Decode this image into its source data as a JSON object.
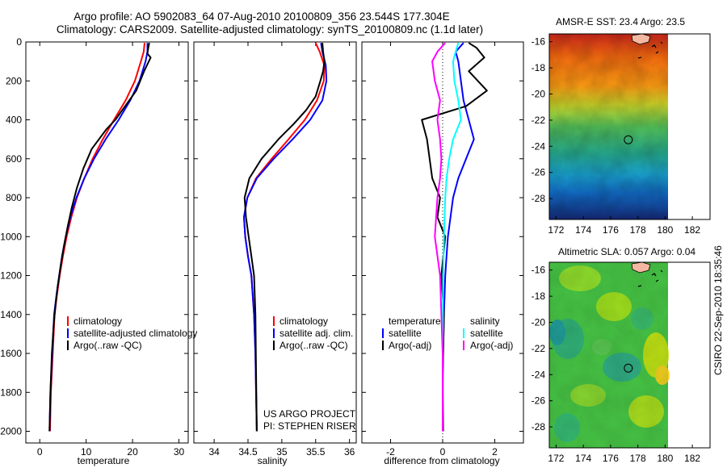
{
  "title": {
    "line1": "Argo profile: AO 5902083_64 07-Aug-2010 20100809_356 23.544S 177.304E",
    "line2": "Climatology: CARS2009. Satellite-adjusted climatology: synTS_20100809.nc (1.1d later)"
  },
  "side_label": "CSIRO  22-Sep-2010 18:35:46",
  "project_label": {
    "line1": "US ARGO PROJECT",
    "line2": "PI: STEPHEN RISER"
  },
  "colors": {
    "red": "#ff0000",
    "blue": "#0000ff",
    "black": "#000000",
    "cyan": "#00ffff",
    "magenta": "#ff00ff"
  },
  "chart_data": [
    {
      "type": "line",
      "xlabel": "temperature",
      "ylabel": "",
      "xlim": [
        -3,
        32
      ],
      "ylim": [
        2060,
        0
      ],
      "xticks": [
        0,
        10,
        20,
        30
      ],
      "yticks": [
        0,
        200,
        400,
        600,
        800,
        1000,
        1200,
        1400,
        1600,
        1800,
        2000
      ],
      "legend": {
        "position": "bottom-right",
        "entries": [
          "climatology",
          "satellite-adjusted climatology",
          "Argo(..raw -QC)"
        ]
      },
      "series": [
        {
          "name": "climatology",
          "color": "red",
          "x": [
            22.6,
            22.4,
            21.8,
            20.5,
            18.5,
            16.0,
            13.6,
            11.4,
            9.6,
            8.0,
            6.8,
            5.8,
            5.0,
            4.3,
            3.7,
            3.2,
            2.8,
            2.4,
            2.2
          ],
          "y": [
            5,
            50,
            100,
            200,
            300,
            400,
            500,
            600,
            700,
            800,
            900,
            1000,
            1100,
            1200,
            1300,
            1400,
            1600,
            1800,
            2000
          ]
        },
        {
          "name": "satellite-adjusted climatology",
          "color": "blue",
          "x": [
            23.2,
            23.2,
            22.8,
            21.5,
            19.5,
            17.0,
            14.2,
            11.7,
            9.6,
            7.9,
            6.6,
            5.6,
            4.8,
            4.2,
            3.6,
            3.1,
            2.7,
            2.3,
            2.1
          ],
          "y": [
            5,
            50,
            100,
            200,
            300,
            400,
            500,
            600,
            700,
            800,
            900,
            1000,
            1100,
            1200,
            1300,
            1400,
            1600,
            1800,
            2000
          ]
        },
        {
          "name": "Argo(..raw -QC)",
          "color": "black",
          "x": [
            23.6,
            23.4,
            23.2,
            23.9,
            22.5,
            20.8,
            16.3,
            14.3,
            11.2,
            9.4,
            8.0,
            6.9,
            6.0,
            5.2,
            4.5,
            3.9,
            3.4,
            3.0,
            2.6,
            2.3,
            2.1
          ],
          "y": [
            5,
            30,
            60,
            80,
            150,
            250,
            400,
            450,
            550,
            650,
            750,
            850,
            950,
            1050,
            1150,
            1250,
            1350,
            1450,
            1600,
            1800,
            2000
          ]
        }
      ]
    },
    {
      "type": "line",
      "xlabel": "salinity",
      "ylabel": "",
      "xlim": [
        33.7,
        36.1
      ],
      "ylim": [
        2060,
        0
      ],
      "xticks": [
        34,
        34.5,
        35,
        35.5,
        36
      ],
      "xticklabels": [
        "34",
        "34.5",
        "35",
        "35.5",
        "36"
      ],
      "legend": {
        "position": "bottom-right",
        "entries": [
          "climatology",
          "satellite adj. clim.",
          "Argo(..raw -QC)"
        ]
      },
      "series": [
        {
          "name": "climatology",
          "color": "red",
          "x": [
            35.5,
            35.56,
            35.63,
            35.62,
            35.52,
            35.34,
            35.1,
            34.85,
            34.62,
            34.49,
            34.44,
            34.46,
            34.5,
            34.55,
            34.59,
            34.61,
            34.62,
            34.63
          ],
          "y": [
            5,
            50,
            120,
            200,
            300,
            400,
            500,
            600,
            700,
            800,
            900,
            1000,
            1100,
            1200,
            1400,
            1600,
            1800,
            2000
          ]
        },
        {
          "name": "satellite adj. clim.",
          "color": "blue",
          "x": [
            35.58,
            35.6,
            35.65,
            35.66,
            35.6,
            35.42,
            35.16,
            34.88,
            34.63,
            34.49,
            34.44,
            34.46,
            34.5,
            34.55,
            34.59,
            34.61,
            34.62,
            34.63
          ],
          "y": [
            5,
            50,
            120,
            200,
            300,
            400,
            500,
            600,
            700,
            800,
            900,
            1000,
            1100,
            1200,
            1400,
            1600,
            1800,
            2000
          ]
        },
        {
          "name": "Argo(..raw -QC)",
          "color": "black",
          "x": [
            35.6,
            35.61,
            35.63,
            35.61,
            35.57,
            35.5,
            35.36,
            35.18,
            34.95,
            34.7,
            34.52,
            34.45,
            34.47,
            34.51,
            34.55,
            34.59,
            34.61,
            34.62,
            34.63
          ],
          "y": [
            5,
            50,
            100,
            150,
            200,
            280,
            350,
            420,
            500,
            600,
            700,
            800,
            900,
            1000,
            1100,
            1200,
            1400,
            1700,
            2000
          ]
        }
      ]
    },
    {
      "type": "line",
      "xlabel": "difference from climatology",
      "ylabel": "",
      "xlim": [
        -3.1,
        3.1
      ],
      "ylim": [
        2060,
        0
      ],
      "xticks": [
        -2,
        0,
        2
      ],
      "legend": {
        "position": "bottom-right",
        "columns": [
          {
            "heading": "temperature",
            "entries": [
              "satellite",
              "Argo(-adj)"
            ]
          },
          {
            "heading": "salinity",
            "entries": [
              "satellite",
              "Argo(-adj)"
            ]
          }
        ]
      },
      "series": [
        {
          "name": "temperature satellite",
          "color": "blue",
          "x": [
            0.8,
            0.5,
            0.6,
            0.7,
            0.8,
            1.0,
            1.2,
            0.9,
            0.6,
            0.4,
            0.3,
            0.2,
            0.15,
            0.1,
            0.05,
            0.02,
            0.0,
            0.0
          ],
          "y": [
            5,
            50,
            100,
            200,
            300,
            400,
            500,
            600,
            700,
            800,
            900,
            1000,
            1100,
            1200,
            1400,
            1600,
            1800,
            2000
          ]
        },
        {
          "name": "temperature Argo(-adj)",
          "color": "black",
          "x": [
            1.0,
            1.3,
            1.6,
            1.0,
            1.7,
            0.9,
            -0.8,
            -0.6,
            -0.4,
            -0.1,
            -0.2,
            0.1,
            -0.05,
            0.05,
            0.0,
            0.02
          ],
          "y": [
            5,
            30,
            80,
            150,
            250,
            330,
            400,
            500,
            700,
            800,
            900,
            1000,
            1200,
            1400,
            1700,
            2000
          ]
        },
        {
          "name": "salinity satellite",
          "color": "cyan",
          "x": [
            0.6,
            0.5,
            0.4,
            0.45,
            0.6,
            0.7,
            0.4,
            0.25,
            0.15,
            0.1,
            0.05,
            0.02,
            0.0,
            0.0
          ],
          "y": [
            5,
            50,
            100,
            200,
            300,
            400,
            500,
            600,
            700,
            800,
            1000,
            1200,
            1600,
            2000
          ]
        },
        {
          "name": "salinity Argo(-adj)",
          "color": "magenta",
          "x": [
            0.1,
            -0.2,
            -0.4,
            -0.3,
            -0.1,
            -0.2,
            -0.1,
            -0.05,
            -0.1,
            -0.2,
            -0.3,
            -0.1,
            0.0,
            0.0
          ],
          "y": [
            5,
            50,
            100,
            200,
            300,
            400,
            500,
            600,
            700,
            800,
            1000,
            1200,
            1600,
            2000
          ]
        }
      ]
    },
    {
      "type": "heatmap",
      "title": "AMSR-E SST: 23.4  Argo: 23.5",
      "xlim": [
        171.5,
        183.3
      ],
      "ylim": [
        -29.6,
        -15.4
      ],
      "xticks": [
        172,
        174,
        176,
        178,
        180,
        182
      ],
      "yticks": [
        -16,
        -18,
        -20,
        -22,
        -24,
        -26,
        -28
      ],
      "marker": {
        "lon": 177.3,
        "lat": -23.5
      }
    },
    {
      "type": "heatmap",
      "title": "Altimetric SLA: 0.057  Argo: 0.04",
      "xlim": [
        171.5,
        183.3
      ],
      "ylim": [
        -29.6,
        -15.4
      ],
      "xticks": [
        172,
        174,
        176,
        178,
        180,
        182
      ],
      "yticks": [
        -16,
        -18,
        -20,
        -22,
        -24,
        -26,
        -28
      ],
      "marker": {
        "lon": 177.3,
        "lat": -23.5
      }
    }
  ]
}
